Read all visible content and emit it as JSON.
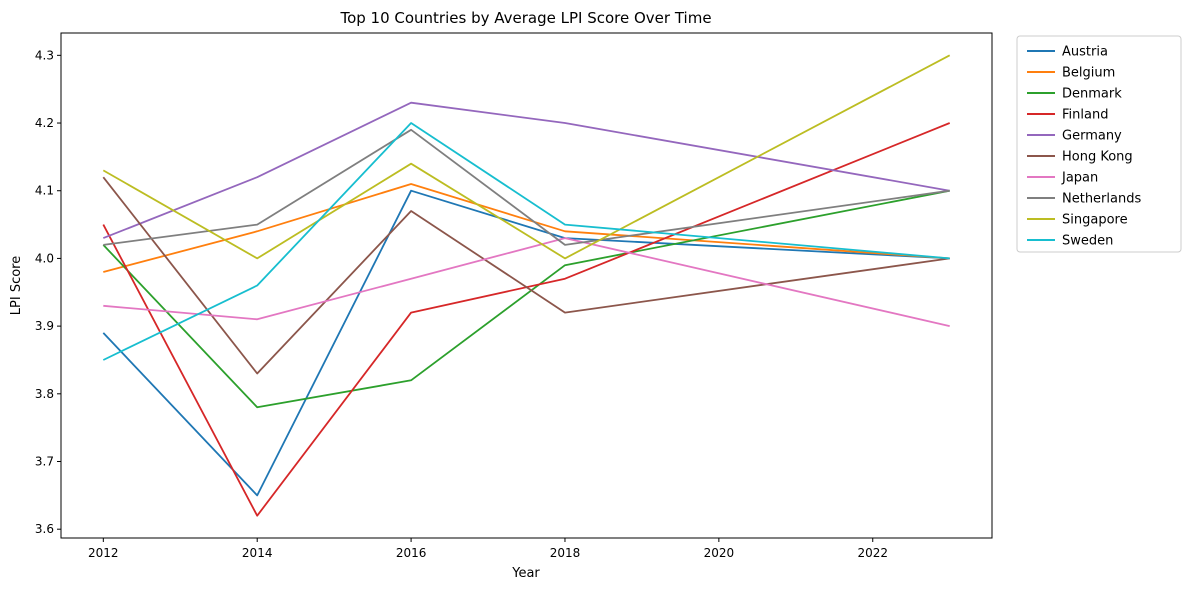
{
  "chart_data": {
    "type": "line",
    "title": "Top 10 Countries by Average LPI Score Over Time",
    "xlabel": "Year",
    "ylabel": "LPI Score",
    "x": [
      2012,
      2014,
      2016,
      2018,
      2023
    ],
    "xlim": [
      2011.45,
      2023.55
    ],
    "ylim": [
      3.587,
      4.333
    ],
    "xticks": [
      2012,
      2014,
      2016,
      2018,
      2020,
      2022
    ],
    "xtick_labels": [
      "2012",
      "2014",
      "2016",
      "2018",
      "2020",
      "2022"
    ],
    "yticks": [
      3.6,
      3.7,
      3.8,
      3.9,
      4.0,
      4.1,
      4.2,
      4.3
    ],
    "ytick_labels": [
      "3.6",
      "3.7",
      "3.8",
      "3.9",
      "4.0",
      "4.1",
      "4.2",
      "4.3"
    ],
    "grid": false,
    "legend_position": "outside-right-top",
    "series": [
      {
        "name": "Austria",
        "color": "#1f77b4",
        "values": [
          3.89,
          3.65,
          4.1,
          4.03,
          4.0
        ]
      },
      {
        "name": "Belgium",
        "color": "#ff7f0e",
        "values": [
          3.98,
          4.04,
          4.11,
          4.04,
          4.0
        ]
      },
      {
        "name": "Denmark",
        "color": "#2ca02c",
        "values": [
          4.02,
          3.78,
          3.82,
          3.99,
          4.1
        ]
      },
      {
        "name": "Finland",
        "color": "#d62728",
        "values": [
          4.05,
          3.62,
          3.92,
          3.97,
          4.2
        ]
      },
      {
        "name": "Germany",
        "color": "#9467bd",
        "values": [
          4.03,
          4.12,
          4.23,
          4.2,
          4.1
        ]
      },
      {
        "name": "Hong Kong",
        "color": "#8c564b",
        "values": [
          4.12,
          3.83,
          4.07,
          3.92,
          4.0
        ]
      },
      {
        "name": "Japan",
        "color": "#e377c2",
        "values": [
          3.93,
          3.91,
          3.97,
          4.03,
          3.9
        ]
      },
      {
        "name": "Netherlands",
        "color": "#7f7f7f",
        "values": [
          4.02,
          4.05,
          4.19,
          4.02,
          4.1
        ]
      },
      {
        "name": "Singapore",
        "color": "#bcbd22",
        "values": [
          4.13,
          4.0,
          4.14,
          4.0,
          4.3
        ]
      },
      {
        "name": "Sweden",
        "color": "#17becf",
        "values": [
          3.85,
          3.96,
          4.2,
          4.05,
          4.0
        ]
      }
    ]
  }
}
